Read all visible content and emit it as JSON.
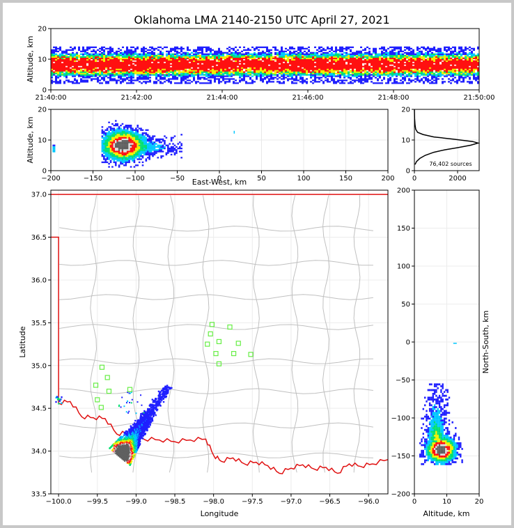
{
  "title": "Oklahoma LMA 2140-2150 UTC April 27, 2021",
  "colors": {
    "density_scale": [
      "#2020ff",
      "#00c8ff",
      "#00e070",
      "#f0f000",
      "#ff1010",
      "#e0e0e0",
      "#606060"
    ],
    "state_border": "#e01010",
    "county_lines": "#c0c0c0",
    "stations": "#66ee44"
  },
  "chart_data": [
    {
      "id": "time-height",
      "type": "heatmap",
      "ylabel": "Altitude, km",
      "xlabel": "",
      "ylim": [
        0,
        20
      ],
      "yticks": [
        "0",
        "10",
        "20"
      ],
      "xticks": [
        "21:40:00",
        "21:42:00",
        "21:44:00",
        "21:46:00",
        "21:48:00",
        "21:50:00"
      ],
      "band": {
        "core_altitude_km": [
          5,
          11
        ],
        "sparse_altitude_km": [
          2,
          14
        ]
      }
    },
    {
      "id": "ew-height",
      "type": "heatmap",
      "xlabel": "East-West, km",
      "ylabel": "Altitude, km",
      "xlim": [
        -200,
        200
      ],
      "ylim": [
        0,
        20
      ],
      "xticks": [
        "-200",
        "-150",
        "-100",
        "-50",
        "0",
        "50",
        "100",
        "150",
        "200"
      ],
      "yticks": [
        "0",
        "10",
        "20"
      ],
      "centroid": {
        "x_km": -115,
        "alt_km": 8
      }
    },
    {
      "id": "alt-histogram",
      "type": "line",
      "xlim": [
        0,
        3000
      ],
      "ylim": [
        0,
        20
      ],
      "xticks": [
        "0",
        "2000"
      ],
      "yticks": [
        "0",
        "10",
        "20"
      ],
      "annotation": "76,402 sources",
      "x": [
        30,
        100,
        250,
        500,
        900,
        1400,
        2000,
        2600,
        2950,
        2700,
        1800,
        900,
        400,
        150,
        60,
        30,
        10,
        0
      ],
      "y": [
        2,
        3,
        4,
        5,
        6,
        6.8,
        7.5,
        8.3,
        9,
        9.5,
        10.3,
        11,
        11.8,
        12.5,
        13.5,
        15,
        17,
        20
      ]
    },
    {
      "id": "plan-view",
      "type": "heatmap",
      "xlabel": "Longitude",
      "ylabel": "Latitude",
      "xlim": [
        -100.1,
        -95.75
      ],
      "ylim": [
        33.5,
        37.05
      ],
      "xticks": [
        "-100.0",
        "-99.5",
        "-99.0",
        "-98.5",
        "-98.0",
        "-97.5",
        "-97.0",
        "-96.5",
        "-96.0"
      ],
      "yticks": [
        "33.5",
        "34.0",
        "34.5",
        "35.0",
        "35.5",
        "36.0",
        "36.5",
        "37.0"
      ],
      "stations": [
        {
          "lon": -99.44,
          "lat": 34.98
        },
        {
          "lon": -99.37,
          "lat": 34.86
        },
        {
          "lon": -99.52,
          "lat": 34.77
        },
        {
          "lon": -99.35,
          "lat": 34.7
        },
        {
          "lon": -99.08,
          "lat": 34.72
        },
        {
          "lon": -99.5,
          "lat": 34.6
        },
        {
          "lon": -99.45,
          "lat": 34.51
        },
        {
          "lon": -98.02,
          "lat": 35.48
        },
        {
          "lon": -97.79,
          "lat": 35.45
        },
        {
          "lon": -98.04,
          "lat": 35.37
        },
        {
          "lon": -97.93,
          "lat": 35.28
        },
        {
          "lon": -98.08,
          "lat": 35.25
        },
        {
          "lon": -97.68,
          "lat": 35.26
        },
        {
          "lon": -97.97,
          "lat": 35.14
        },
        {
          "lon": -97.74,
          "lat": 35.14
        },
        {
          "lon": -97.52,
          "lat": 35.13
        },
        {
          "lon": -97.93,
          "lat": 35.02
        }
      ]
    },
    {
      "id": "ns-height",
      "type": "heatmap",
      "xlabel": "Altitude, km",
      "ylabel": "North-South, km",
      "xlim": [
        0,
        20
      ],
      "ylim": [
        -200,
        200
      ],
      "xticks": [
        "0",
        "10",
        "20"
      ],
      "yticks": [
        "-200",
        "-150",
        "-100",
        "-50",
        "0",
        "50",
        "100",
        "150",
        "200"
      ],
      "centroid": {
        "alt_km": 8,
        "y_km": -143
      }
    }
  ]
}
